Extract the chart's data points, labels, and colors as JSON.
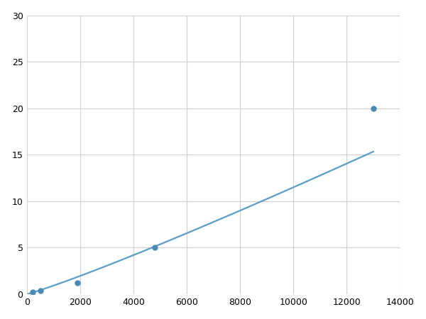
{
  "x": [
    200,
    500,
    1900,
    4800,
    13000
  ],
  "y": [
    0.2,
    0.4,
    1.2,
    5.0,
    20.0
  ],
  "line_color": "#5b9dc9",
  "marker_color": "#4a8ab5",
  "marker_size": 6,
  "line_width": 1.6,
  "xlim": [
    0,
    14000
  ],
  "ylim": [
    0,
    30
  ],
  "xticks": [
    0,
    2000,
    4000,
    6000,
    8000,
    10000,
    12000,
    14000
  ],
  "yticks": [
    0,
    5,
    10,
    15,
    20,
    25,
    30
  ],
  "grid_color": "#d0d0d0",
  "background_color": "#ffffff",
  "figure_background": "#ffffff"
}
